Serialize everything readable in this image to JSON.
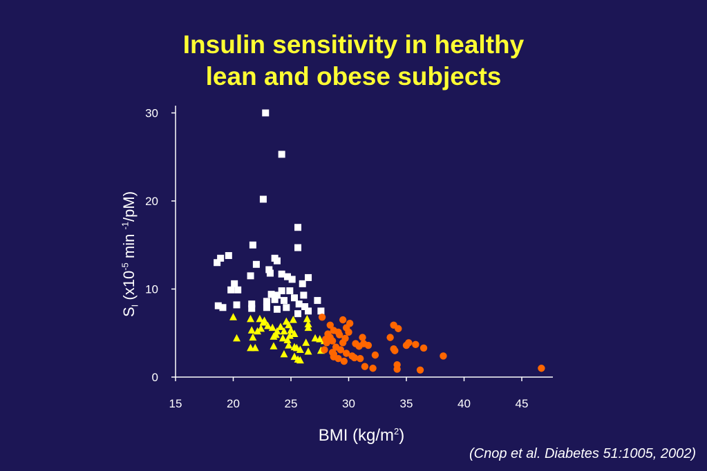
{
  "slide": {
    "title_line1": "Insulin sensitivity in healthy",
    "title_line2": "lean and obese subjects",
    "citation": "(Cnop et al. Diabetes 51:1005, 2002)",
    "background_color": "#1c1655",
    "title_color": "#ffff33"
  },
  "chart_data": {
    "type": "scatter",
    "xlabel_main": "BMI (kg/m",
    "xlabel_sup": "2",
    "xlabel_close": ")",
    "ylabel_sym": "S",
    "ylabel_sub": "I",
    "ylabel_mid": " (x10",
    "ylabel_sup1": "-5",
    "ylabel_mid2": " min ",
    "ylabel_sup2": "-1",
    "ylabel_end": "/pM)",
    "xlim": [
      15,
      48
    ],
    "ylim": [
      0,
      31
    ],
    "x_ticks": [
      15,
      20,
      25,
      30,
      35,
      40,
      45
    ],
    "y_ticks": [
      0,
      10,
      20,
      30
    ],
    "grid": false,
    "legend": "none",
    "series": [
      {
        "marker": "square",
        "color": "#ffffff",
        "points": [
          [
            22.8,
            30.0
          ],
          [
            24.2,
            25.3
          ],
          [
            22.6,
            20.2
          ],
          [
            25.6,
            17.0
          ],
          [
            25.6,
            14.7
          ],
          [
            21.7,
            15.0
          ],
          [
            18.6,
            13.0
          ],
          [
            18.9,
            13.5
          ],
          [
            19.6,
            13.8
          ],
          [
            22.0,
            12.8
          ],
          [
            23.1,
            12.2
          ],
          [
            23.2,
            11.8
          ],
          [
            23.6,
            13.5
          ],
          [
            23.8,
            13.2
          ],
          [
            21.5,
            11.5
          ],
          [
            24.2,
            11.7
          ],
          [
            24.7,
            11.4
          ],
          [
            25.1,
            11.1
          ],
          [
            26.0,
            10.6
          ],
          [
            26.5,
            11.3
          ],
          [
            20.1,
            10.6
          ],
          [
            19.8,
            9.9
          ],
          [
            20.4,
            9.9
          ],
          [
            23.3,
            9.4
          ],
          [
            23.8,
            9.3
          ],
          [
            24.2,
            9.8
          ],
          [
            24.9,
            9.8
          ],
          [
            25.3,
            9.0
          ],
          [
            26.1,
            9.3
          ],
          [
            27.3,
            8.7
          ],
          [
            21.6,
            8.3
          ],
          [
            22.9,
            8.6
          ],
          [
            23.6,
            8.8
          ],
          [
            24.4,
            8.7
          ],
          [
            25.7,
            8.3
          ],
          [
            26.2,
            8.0
          ],
          [
            18.7,
            8.1
          ],
          [
            19.1,
            7.9
          ],
          [
            20.3,
            8.2
          ],
          [
            21.6,
            7.8
          ],
          [
            22.9,
            7.9
          ],
          [
            23.8,
            7.7
          ],
          [
            24.6,
            7.9
          ],
          [
            25.6,
            7.2
          ],
          [
            26.5,
            7.5
          ],
          [
            27.6,
            7.5
          ]
        ]
      },
      {
        "marker": "triangle",
        "color": "#ffff00",
        "points": [
          [
            20.0,
            6.8
          ],
          [
            21.5,
            6.6
          ],
          [
            22.3,
            6.6
          ],
          [
            22.6,
            6.2
          ],
          [
            23.0,
            5.8
          ],
          [
            22.4,
            5.5
          ],
          [
            21.6,
            5.3
          ],
          [
            22.1,
            5.2
          ],
          [
            23.4,
            5.6
          ],
          [
            23.8,
            5.2
          ],
          [
            24.1,
            5.7
          ],
          [
            24.6,
            6.3
          ],
          [
            24.8,
            5.9
          ],
          [
            25.2,
            6.5
          ],
          [
            26.4,
            6.6
          ],
          [
            26.5,
            6.0
          ],
          [
            26.5,
            5.6
          ],
          [
            25.0,
            5.3
          ],
          [
            24.4,
            5.2
          ],
          [
            23.7,
            4.8
          ],
          [
            24.9,
            4.7
          ],
          [
            25.3,
            4.9
          ],
          [
            20.3,
            4.4
          ],
          [
            21.7,
            4.5
          ],
          [
            24.3,
            4.4
          ],
          [
            24.7,
            4.2
          ],
          [
            27.1,
            4.4
          ],
          [
            27.5,
            4.3
          ],
          [
            26.3,
            3.9
          ],
          [
            25.3,
            3.4
          ],
          [
            24.8,
            3.6
          ],
          [
            23.5,
            3.5
          ],
          [
            21.5,
            3.3
          ],
          [
            21.9,
            3.3
          ],
          [
            25.5,
            3.3
          ],
          [
            25.8,
            3.1
          ],
          [
            24.4,
            2.6
          ],
          [
            26.5,
            2.9
          ],
          [
            27.6,
            3.0
          ],
          [
            25.3,
            2.3
          ],
          [
            25.6,
            2.0
          ],
          [
            25.8,
            1.9
          ],
          [
            27.9,
            4.1
          ],
          [
            23.5,
            4.6
          ],
          [
            22.7,
            6.4
          ]
        ]
      },
      {
        "marker": "circle",
        "color": "#ff6600",
        "points": [
          [
            27.7,
            6.8
          ],
          [
            29.5,
            6.5
          ],
          [
            30.1,
            6.1
          ],
          [
            28.4,
            5.9
          ],
          [
            29.8,
            5.6
          ],
          [
            28.7,
            5.3
          ],
          [
            29.1,
            5.1
          ],
          [
            30.0,
            5.1
          ],
          [
            28.2,
            4.9
          ],
          [
            29.2,
            4.8
          ],
          [
            28.4,
            4.5
          ],
          [
            29.7,
            4.4
          ],
          [
            28.6,
            4.1
          ],
          [
            28.1,
            3.9
          ],
          [
            29.5,
            3.9
          ],
          [
            30.6,
            3.8
          ],
          [
            31.3,
            3.8
          ],
          [
            31.2,
            4.5
          ],
          [
            31.7,
            3.6
          ],
          [
            30.9,
            3.5
          ],
          [
            28.9,
            3.4
          ],
          [
            29.3,
            3.1
          ],
          [
            28.6,
            2.8
          ],
          [
            27.9,
            3.1
          ],
          [
            29.8,
            2.7
          ],
          [
            28.7,
            2.6
          ],
          [
            28.7,
            2.3
          ],
          [
            29.1,
            2.1
          ],
          [
            30.5,
            2.2
          ],
          [
            31.0,
            2.1
          ],
          [
            30.3,
            2.4
          ],
          [
            32.3,
            2.5
          ],
          [
            29.6,
            1.8
          ],
          [
            31.4,
            1.2
          ],
          [
            32.1,
            1.0
          ],
          [
            33.6,
            4.5
          ],
          [
            33.9,
            5.9
          ],
          [
            34.3,
            5.5
          ],
          [
            33.9,
            3.2
          ],
          [
            34.0,
            3.0
          ],
          [
            35.0,
            3.6
          ],
          [
            35.2,
            3.9
          ],
          [
            35.8,
            3.7
          ],
          [
            36.5,
            3.3
          ],
          [
            38.2,
            2.4
          ],
          [
            34.2,
            1.4
          ],
          [
            34.2,
            0.9
          ],
          [
            36.2,
            0.8
          ],
          [
            46.7,
            1.0
          ],
          [
            28.0,
            4.3
          ]
        ]
      }
    ]
  }
}
